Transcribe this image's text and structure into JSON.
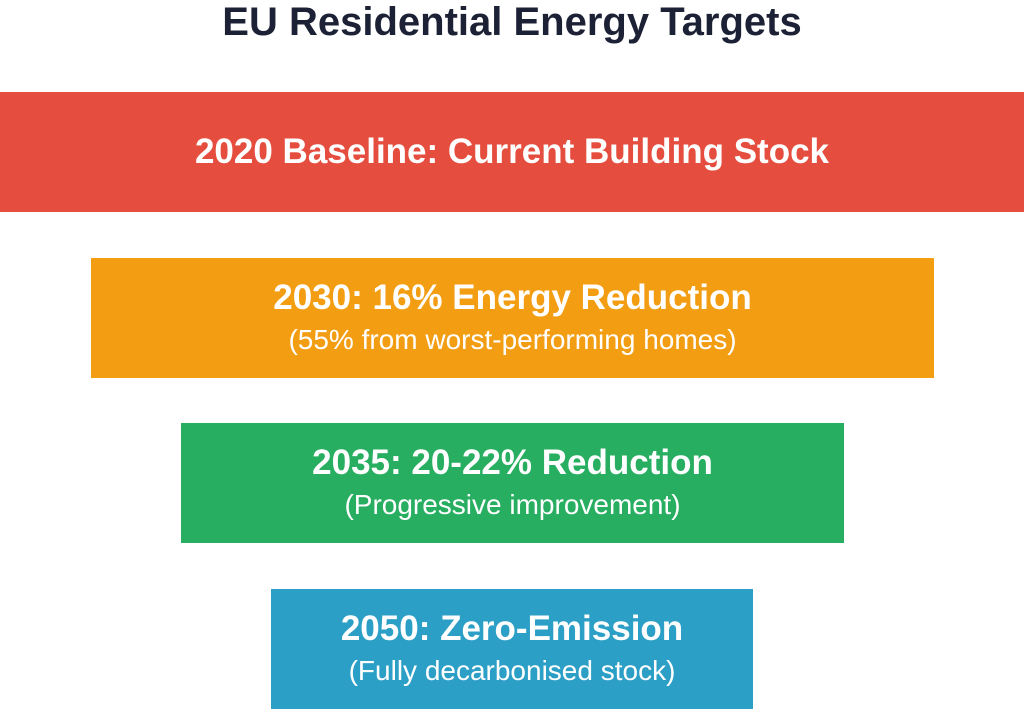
{
  "title": "EU Residential Energy Targets",
  "stages": [
    {
      "label": "2020 Baseline: Current Building Stock"
    },
    {
      "label": "2030: 16% Energy Reduction",
      "note": "(55% from worst-performing homes)"
    },
    {
      "label": "2035: 20-22% Reduction",
      "note": "(Progressive improvement)"
    },
    {
      "label": "2050: Zero-Emission",
      "note": "(Fully decarbonised stock)"
    }
  ]
}
